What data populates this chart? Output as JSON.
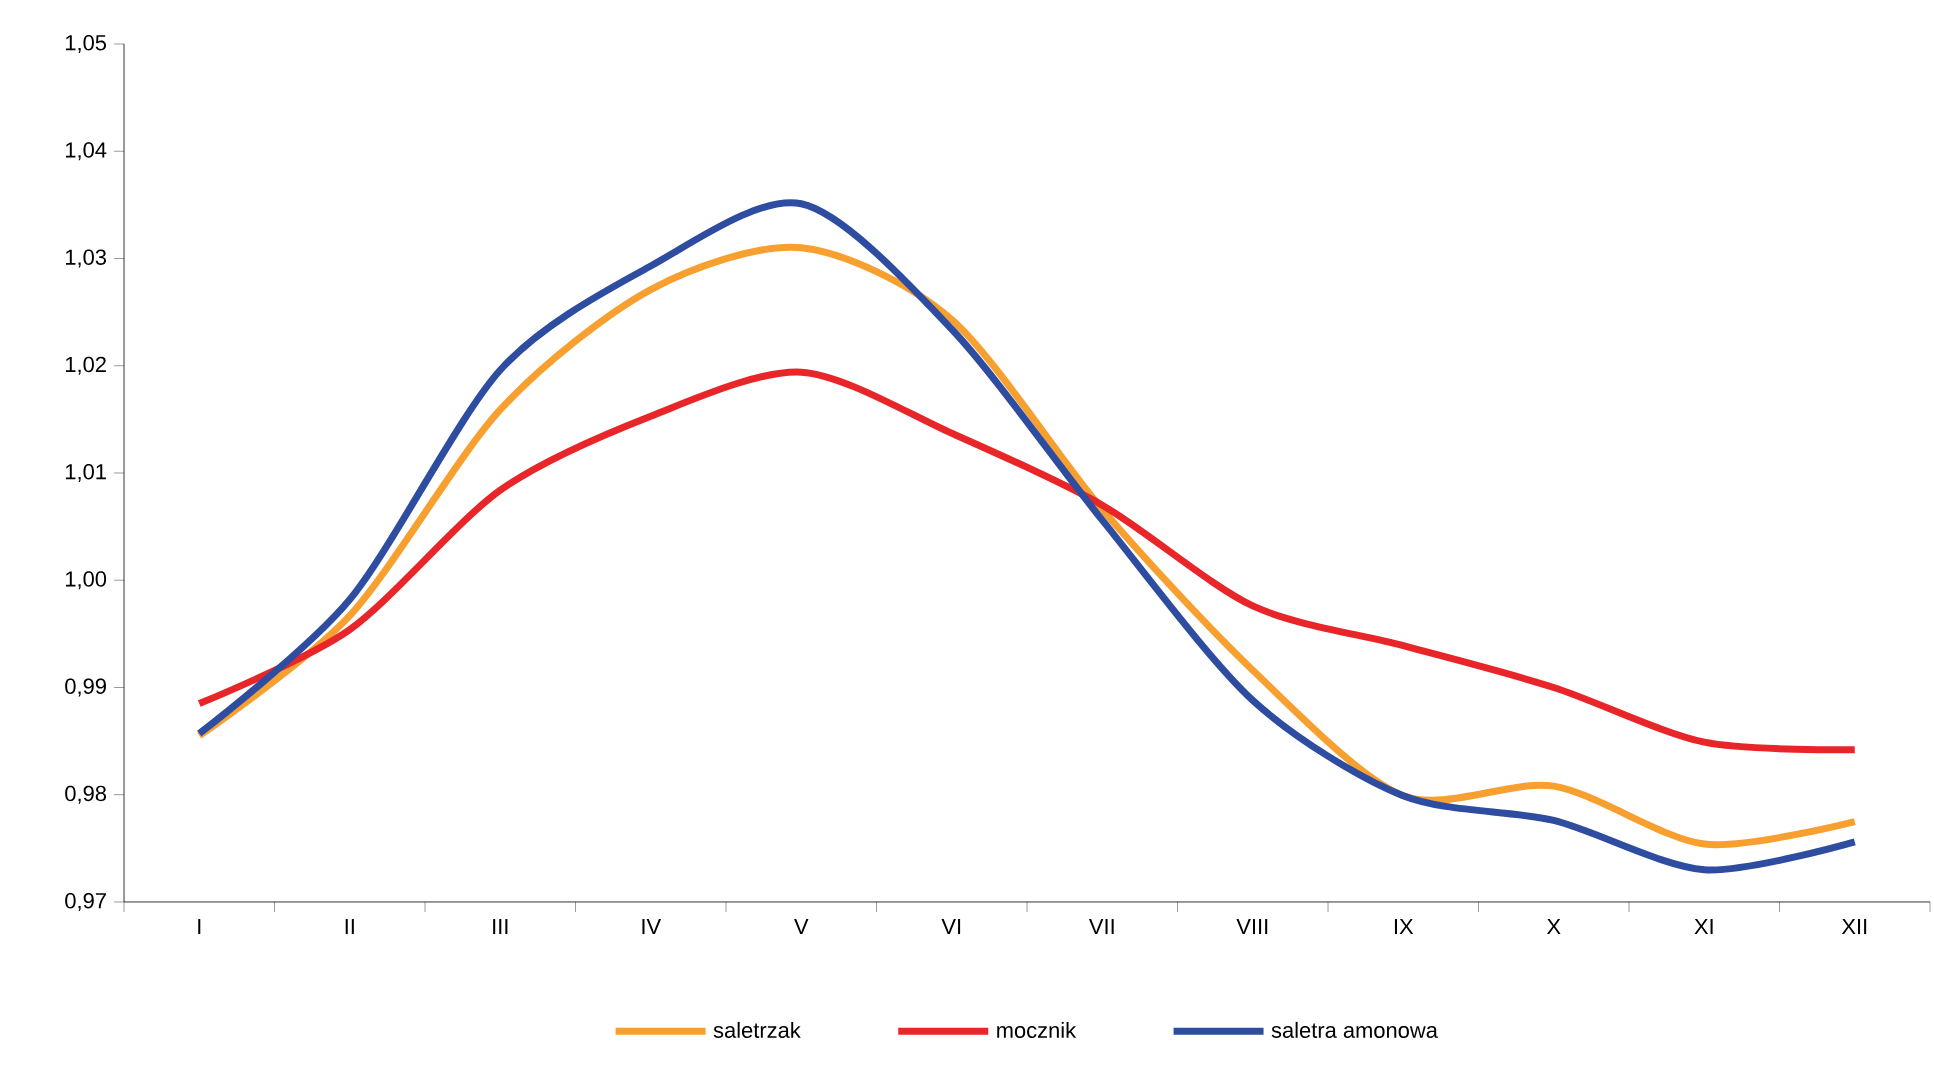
{
  "chart_data": {
    "type": "line",
    "categories": [
      "I",
      "II",
      "III",
      "IV",
      "V",
      "VI",
      "VII",
      "VIII",
      "IX",
      "X",
      "XI",
      "XII"
    ],
    "series": [
      {
        "name": "saletrzak",
        "color": "#f7a030",
        "values": [
          0.9855,
          0.9967,
          1.0159,
          1.0271,
          1.031,
          1.0243,
          1.0066,
          0.9916,
          0.9799,
          0.9808,
          0.9754,
          0.9775
        ]
      },
      {
        "name": "mocznik",
        "color": "#e8262a",
        "values": [
          0.9885,
          0.9954,
          1.0084,
          1.0153,
          1.0194,
          1.0137,
          1.007,
          0.9976,
          0.9939,
          0.99,
          0.9849,
          0.9842
        ]
      },
      {
        "name": "saletra amonowa",
        "color": "#2e4da0",
        "values": [
          0.9857,
          0.9982,
          1.0196,
          1.0293,
          1.0351,
          1.0234,
          1.0056,
          0.9888,
          0.9799,
          0.9776,
          0.973,
          0.9756
        ]
      }
    ],
    "ylim": [
      0.97,
      1.05
    ],
    "yticks": [
      {
        "value": 0.97,
        "label": "0,97"
      },
      {
        "value": 0.98,
        "label": "0,98"
      },
      {
        "value": 0.99,
        "label": "0,99"
      },
      {
        "value": 1.0,
        "label": "1,00"
      },
      {
        "value": 1.01,
        "label": "1,01"
      },
      {
        "value": 1.02,
        "label": "1,02"
      },
      {
        "value": 1.03,
        "label": "1,03"
      },
      {
        "value": 1.04,
        "label": "1,04"
      },
      {
        "value": 1.05,
        "label": "1,05"
      }
    ],
    "legend": "bottom",
    "marker": "none",
    "line_style": "solid"
  }
}
